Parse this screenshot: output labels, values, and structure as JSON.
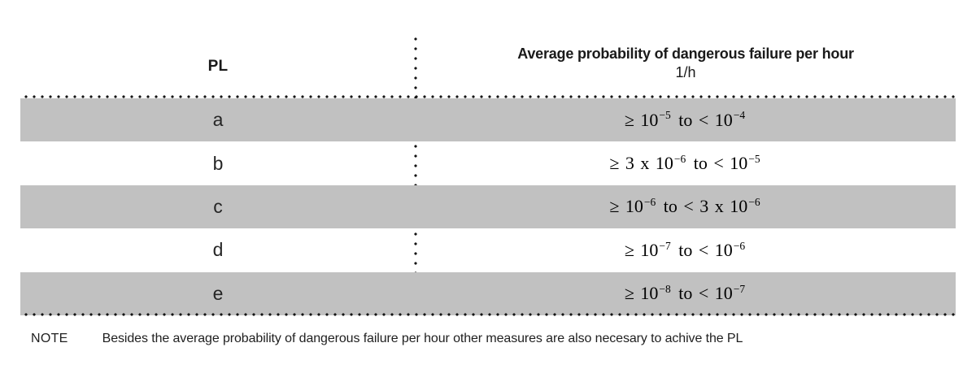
{
  "colors": {
    "row_shade_gray": "#c1c1c1",
    "dotted_line": "#141414",
    "text": "#1a1a1a"
  },
  "table": {
    "header": {
      "pl_label": "PL",
      "prob_title": "Average probability of dangerous failure per hour",
      "prob_unit": "1/h"
    },
    "rows": [
      {
        "pl": "a",
        "range_parts": [
          "≥ 10",
          "−5",
          " to < 10",
          "−4"
        ]
      },
      {
        "pl": "b",
        "range_parts": [
          "≥ 3 x 10",
          "−6",
          " to < 10",
          "−5"
        ]
      },
      {
        "pl": "c",
        "range_parts": [
          "≥ 10",
          "−6",
          " to < 3 x 10",
          "−6"
        ]
      },
      {
        "pl": "d",
        "range_parts": [
          "≥ 10",
          "−7",
          " to < 10",
          "−6"
        ]
      },
      {
        "pl": "e",
        "range_parts": [
          "≥ 10",
          "−8",
          " to < 10",
          "−7"
        ]
      }
    ]
  },
  "note": {
    "label": "NOTE",
    "text": "Besides the average probability of dangerous failure per hour other measures are also necesary to achive the PL"
  }
}
